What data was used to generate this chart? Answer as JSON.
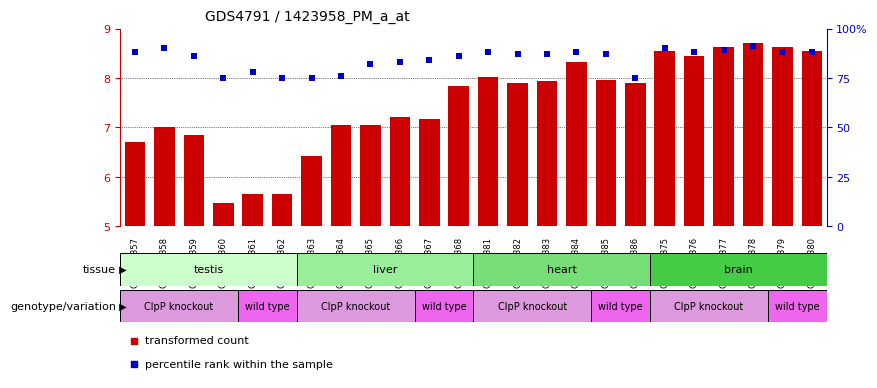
{
  "title": "GDS4791 / 1423958_PM_a_at",
  "samples": [
    "GSM988357",
    "GSM988358",
    "GSM988359",
    "GSM988360",
    "GSM988361",
    "GSM988362",
    "GSM988363",
    "GSM988364",
    "GSM988365",
    "GSM988366",
    "GSM988367",
    "GSM988368",
    "GSM988381",
    "GSM988382",
    "GSM988383",
    "GSM988384",
    "GSM988385",
    "GSM988386",
    "GSM988375",
    "GSM988376",
    "GSM988377",
    "GSM988378",
    "GSM988379",
    "GSM988380"
  ],
  "bar_values": [
    6.7,
    7.0,
    6.85,
    5.48,
    5.65,
    5.65,
    6.42,
    7.05,
    7.05,
    7.22,
    7.17,
    7.83,
    8.02,
    7.9,
    7.93,
    8.32,
    7.95,
    7.9,
    8.55,
    8.45,
    8.62,
    8.7,
    8.62,
    8.55
  ],
  "percentile_values": [
    88,
    90,
    86,
    75,
    78,
    75,
    75,
    76,
    82,
    83,
    84,
    86,
    88,
    87,
    87,
    88,
    87,
    75,
    90,
    88,
    89,
    91,
    88,
    88
  ],
  "bar_color": "#cc0000",
  "dot_color": "#0000cc",
  "ylim_left": [
    5,
    9
  ],
  "ylim_right": [
    0,
    100
  ],
  "yticks_left": [
    5,
    6,
    7,
    8,
    9
  ],
  "yticks_right": [
    0,
    25,
    50,
    75,
    100
  ],
  "ytick_labels_right": [
    "0",
    "25",
    "50",
    "75",
    "100%"
  ],
  "grid_values": [
    6,
    7,
    8
  ],
  "tissues": [
    {
      "label": "testis",
      "start": 0,
      "end": 6,
      "color": "#ccffcc"
    },
    {
      "label": "liver",
      "start": 6,
      "end": 12,
      "color": "#99ee99"
    },
    {
      "label": "heart",
      "start": 12,
      "end": 18,
      "color": "#77dd77"
    },
    {
      "label": "brain",
      "start": 18,
      "end": 24,
      "color": "#44cc44"
    }
  ],
  "genotypes": [
    {
      "label": "ClpP knockout",
      "start": 0,
      "end": 4,
      "color": "#dd99dd"
    },
    {
      "label": "wild type",
      "start": 4,
      "end": 6,
      "color": "#ee66ee"
    },
    {
      "label": "ClpP knockout",
      "start": 6,
      "end": 10,
      "color": "#dd99dd"
    },
    {
      "label": "wild type",
      "start": 10,
      "end": 12,
      "color": "#ee66ee"
    },
    {
      "label": "ClpP knockout",
      "start": 12,
      "end": 16,
      "color": "#dd99dd"
    },
    {
      "label": "wild type",
      "start": 16,
      "end": 18,
      "color": "#ee66ee"
    },
    {
      "label": "ClpP knockout",
      "start": 18,
      "end": 22,
      "color": "#dd99dd"
    },
    {
      "label": "wild type",
      "start": 22,
      "end": 24,
      "color": "#ee66ee"
    }
  ],
  "legend_items": [
    {
      "label": "transformed count",
      "color": "#cc0000"
    },
    {
      "label": "percentile rank within the sample",
      "color": "#0000cc"
    }
  ],
  "tissue_label": "tissue",
  "genotype_label": "genotype/variation",
  "background_color": "#ffffff"
}
